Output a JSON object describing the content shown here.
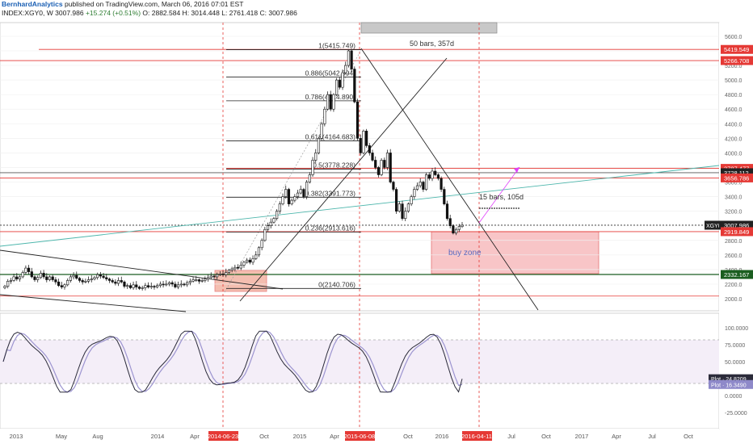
{
  "header": {
    "author": "BernhardAnalytics",
    "published": "published on TradingView.com, March 06, 2016 07:01 EST",
    "symbol": "INDEX:XGY0, W",
    "price": "3007.986",
    "change": "+15.274 (+0.51%)",
    "ohlc": "O: 2882.584  H: 3014.448  L: 2761.418  C: 3007.986"
  },
  "annotations": {
    "bars_top": "50 bars, 357d",
    "bars_right": "15 bars, 105d",
    "buy_zone": "buy zone"
  },
  "fib_levels": [
    {
      "ratio": 1,
      "label": "1(5415.749)"
    },
    {
      "ratio": 0.886,
      "label": "0.886(5042.394)"
    },
    {
      "ratio": 0.786,
      "label": "0.786(4714.890)"
    },
    {
      "ratio": 0.618,
      "label": "0.618(4164.683)"
    },
    {
      "ratio": 0.5,
      "label": "0.5(3778.228)"
    },
    {
      "ratio": 0.382,
      "label": "0.382(3391.773)"
    },
    {
      "ratio": 0.236,
      "label": "0.236(2913.616)"
    },
    {
      "ratio": 0,
      "label": "0(2140.706)"
    }
  ],
  "price_tags": [
    {
      "value": 5419.549,
      "text": "5419.549",
      "color": "#e53935"
    },
    {
      "value": 5266.708,
      "text": "5266.708",
      "color": "#e53935"
    },
    {
      "value": 3787.477,
      "text": "3787.477",
      "color": "#e53935"
    },
    {
      "value": 3728.112,
      "text": "3728.112",
      "color": "#222222"
    },
    {
      "value": 3656.786,
      "text": "3656.786",
      "color": "#e53935"
    },
    {
      "value": 3007.986,
      "text": "XGY0",
      "text2": "3007.986",
      "color": "#222222"
    },
    {
      "value": 2919.849,
      "text": "2919.849",
      "color": "#e53935"
    },
    {
      "value": 2332.167,
      "text": "2332.167",
      "color": "#1b5e20"
    }
  ],
  "indicator_tags": [
    {
      "value": 24.8209,
      "text": "Plot · 24.8209",
      "color": "#2b2b3a"
    },
    {
      "value": 16.349,
      "text": "Plot · 16.3490",
      "color": "#8e89c9"
    }
  ],
  "x_labels": [
    "2013",
    "May",
    "Aug",
    "2014",
    "Apr",
    "2014-06-23",
    "Oct",
    "2015",
    "Apr",
    "2015-06-08",
    "Oct",
    "2016",
    "2016-04-11",
    "Jul",
    "Oct",
    "2017",
    "Apr",
    "Jul",
    "Oct"
  ],
  "chart_data": [
    {
      "type": "candlestick",
      "title": "",
      "ylim": [
        1900,
        5900
      ],
      "y_ticks": [
        2000,
        2200,
        2400,
        2600,
        2800,
        3000,
        3200,
        3400,
        3600,
        3800,
        4000,
        4200,
        4400,
        4600,
        4800,
        5000,
        5200,
        5400,
        5600,
        5800
      ],
      "series": [
        {
          "name": "XGY0",
          "weekly_close_approx": [
            2170,
            2240,
            2250,
            2300,
            2270,
            2300,
            2360,
            2420,
            2370,
            2300,
            2260,
            2290,
            2350,
            2300,
            2260,
            2300,
            2260,
            2230,
            2180,
            2160,
            2190,
            2250,
            2300,
            2320,
            2280,
            2250,
            2230,
            2240,
            2260,
            2270,
            2290,
            2330,
            2310,
            2290,
            2270,
            2250,
            2230,
            2210,
            2250,
            2230,
            2170,
            2180,
            2150,
            2190,
            2160,
            2140,
            2150,
            2180,
            2160,
            2170,
            2160,
            2180,
            2200,
            2190,
            2200,
            2220,
            2200,
            2160,
            2190,
            2200,
            2190,
            2220,
            2240,
            2260,
            2260,
            2240,
            2250,
            2270,
            2290,
            2310,
            2300,
            2330,
            2340,
            2330,
            2360,
            2390,
            2410,
            2430,
            2420,
            2460,
            2500,
            2530,
            2500,
            2550,
            2600,
            2700,
            2800,
            2950,
            3000,
            3050,
            3100,
            3200,
            3300,
            3400,
            3500,
            3300,
            3350,
            3400,
            3450,
            3500,
            3400,
            3600,
            3700,
            3900,
            4000,
            4200,
            4400,
            4600,
            4800,
            4600,
            4800,
            5000,
            4900,
            5100,
            5200,
            5400,
            5150,
            4700,
            4200,
            4000,
            4300,
            4100,
            4000,
            3900,
            3800,
            3700,
            3900,
            3800,
            4000,
            3600,
            3500,
            3200,
            3300,
            3100,
            3200,
            3300,
            3400,
            3500,
            3550,
            3600,
            3500,
            3700,
            3650,
            3750,
            3700,
            3650,
            3500,
            3300,
            3100,
            3000,
            2900,
            2950,
            2990,
            3008
          ]
        }
      ],
      "annotations": {
        "horizontal_lines": [
          5419.549,
          5266.708,
          3787.477,
          3728.112,
          3656.786,
          3007.986,
          2919.849,
          2332.167
        ],
        "buy_zone": [
          2332.167,
          2919.849
        ],
        "fib_retracement": {
          "high": 5415.749,
          "low": 2140.706
        }
      }
    },
    {
      "type": "line",
      "title": "",
      "ylim": [
        -25,
        110
      ],
      "y_ticks": [
        100,
        75,
        50,
        25,
        0,
        -25
      ],
      "series": [
        {
          "name": "Plot",
          "last": 24.8209
        },
        {
          "name": "Plot",
          "last": 16.349
        }
      ]
    }
  ]
}
